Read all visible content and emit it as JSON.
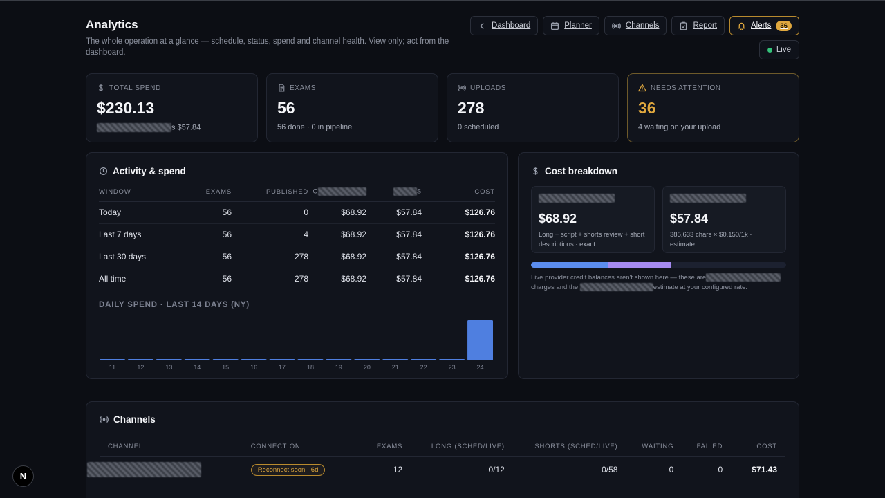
{
  "header": {
    "title": "Analytics",
    "subtitle": "The whole operation at a glance — schedule, status, spend and channel health. View only; act from the dashboard."
  },
  "nav": {
    "dashboard": "Dashboard",
    "planner": "Planner",
    "channels": "Channels",
    "report": "Report",
    "alerts": "Alerts",
    "alerts_count": "36",
    "live": "Live"
  },
  "stats": {
    "total_spend": {
      "label": "TOTAL SPEND",
      "value": "$230.13",
      "sub_suffix": "s $57.84"
    },
    "exams": {
      "label": "EXAMS",
      "value": "56",
      "sub": "56 done · 0 in pipeline"
    },
    "uploads": {
      "label": "UPLOADS",
      "value": "278",
      "sub": "0 scheduled"
    },
    "attention": {
      "label": "NEEDS ATTENTION",
      "value": "36",
      "sub": "4 waiting on your upload"
    }
  },
  "activity": {
    "title": "Activity & spend",
    "columns": [
      "WINDOW",
      "EXAMS",
      "PUBLISHED",
      "C",
      "S",
      "COST"
    ],
    "rows": [
      [
        "Today",
        "56",
        "0",
        "$68.92",
        "$57.84",
        "$126.76"
      ],
      [
        "Last 7 days",
        "56",
        "4",
        "$68.92",
        "$57.84",
        "$126.76"
      ],
      [
        "Last 30 days",
        "56",
        "278",
        "$68.92",
        "$57.84",
        "$126.76"
      ],
      [
        "All time",
        "56",
        "278",
        "$68.92",
        "$57.84",
        "$126.76"
      ]
    ]
  },
  "chart_data": {
    "type": "bar",
    "title": "DAILY SPEND · LAST 14 DAYS (NY)",
    "categories": [
      "11",
      "12",
      "13",
      "14",
      "15",
      "16",
      "17",
      "18",
      "19",
      "20",
      "21",
      "22",
      "23",
      "24"
    ],
    "values": [
      0,
      0,
      0,
      0,
      0,
      0,
      0,
      0,
      0,
      0,
      0,
      0,
      0,
      126.76
    ],
    "xlabel": "",
    "ylabel": "",
    "colors": {
      "bar": "#4f7fe0"
    }
  },
  "cost": {
    "title": "Cost breakdown",
    "left": {
      "value": "$68.92",
      "desc": "Long + script + shorts review + short descriptions · exact"
    },
    "right": {
      "value": "$57.84",
      "desc": "385,633 chars × $0.150/1k · estimate"
    },
    "share": {
      "a": 0.3,
      "b": 0.25
    },
    "note_a": "Live provider credit balances aren't shown here — these are",
    "note_b": "charges and the",
    "note_c": "estimate at your configured rate."
  },
  "channels": {
    "title": "Channels",
    "columns": [
      "CHANNEL",
      "CONNECTION",
      "EXAMS",
      "LONG (SCHED/LIVE)",
      "SHORTS (SCHED/LIVE)",
      "WAITING",
      "FAILED",
      "COST"
    ],
    "rows": [
      {
        "connection": "Reconnect soon · 6d",
        "exams": "12",
        "long": "0/12",
        "shorts": "0/58",
        "waiting": "0",
        "failed": "0",
        "cost": "$71.43"
      }
    ]
  },
  "logo": "N",
  "colors": {
    "accent": "#e0a83e",
    "live": "#34c27a",
    "bar": "#4f7fe0"
  }
}
